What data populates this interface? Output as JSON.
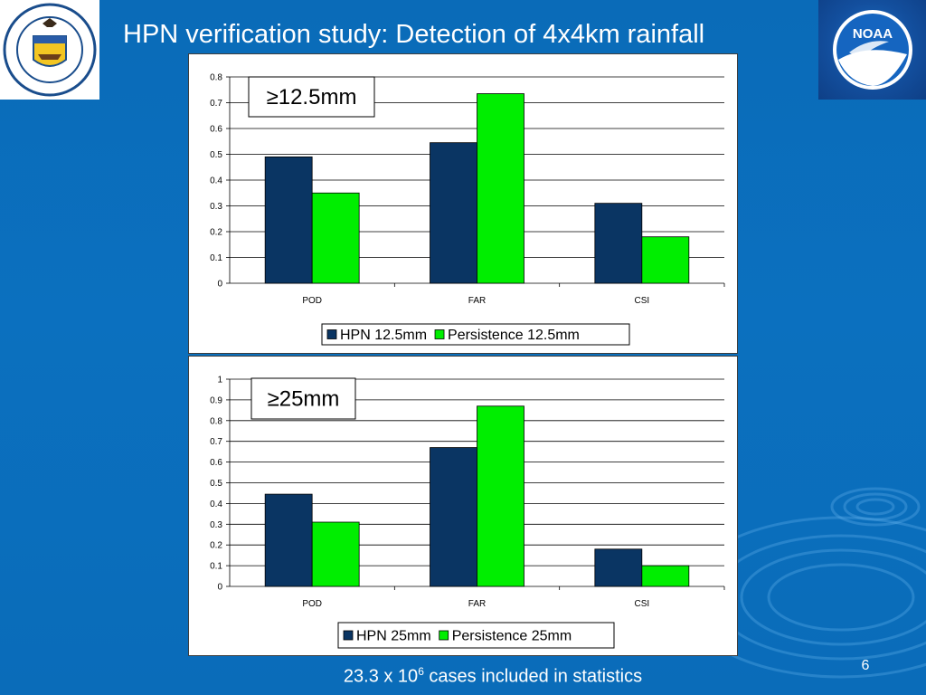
{
  "slide": {
    "title": "HPN verification study: Detection of 4x4km rainfall",
    "footer_main": "23.3 x 10",
    "footer_sup": "6",
    "footer_rest": " cases included in statistics",
    "page_number": "6",
    "colors": {
      "background": "#0b6fbe",
      "text": "#ffffff"
    }
  },
  "logos": {
    "left": {
      "icon": "department-of-commerce-seal-icon",
      "ring_text": "DEPARTMENT OF COMMERCE • UNITED STATES OF AMERICA"
    },
    "right": {
      "icon": "noaa-logo-icon",
      "text": "NOAA"
    }
  },
  "chart_data": [
    {
      "type": "bar",
      "categories": [
        "POD",
        "FAR",
        "CSI"
      ],
      "series": [
        {
          "name": "HPN 12.5mm",
          "values": [
            0.49,
            0.545,
            0.31
          ],
          "color": "#0a3563"
        },
        {
          "name": "Persistence 12.5mm",
          "values": [
            0.35,
            0.735,
            0.18
          ],
          "color": "#00ee00"
        }
      ],
      "yticks": [
        "0",
        "0.1",
        "0.2",
        "0.3",
        "0.4",
        "0.5",
        "0.6",
        "0.7",
        "0.8"
      ],
      "ylim": [
        0,
        0.8
      ],
      "grid": true,
      "legend": "bottom",
      "annotation": "≥12.5mm"
    },
    {
      "type": "bar",
      "categories": [
        "POD",
        "FAR",
        "CSI"
      ],
      "series": [
        {
          "name": "HPN 25mm",
          "values": [
            0.445,
            0.67,
            0.18
          ],
          "color": "#0a3563"
        },
        {
          "name": "Persistence 25mm",
          "values": [
            0.31,
            0.87,
            0.1
          ],
          "color": "#00ee00"
        }
      ],
      "yticks": [
        "0",
        "0.1",
        "0.2",
        "0.3",
        "0.4",
        "0.5",
        "0.6",
        "0.7",
        "0.8",
        "0.9",
        "1"
      ],
      "ylim": [
        0,
        1
      ],
      "grid": true,
      "legend": "bottom",
      "annotation": "≥25mm"
    }
  ]
}
